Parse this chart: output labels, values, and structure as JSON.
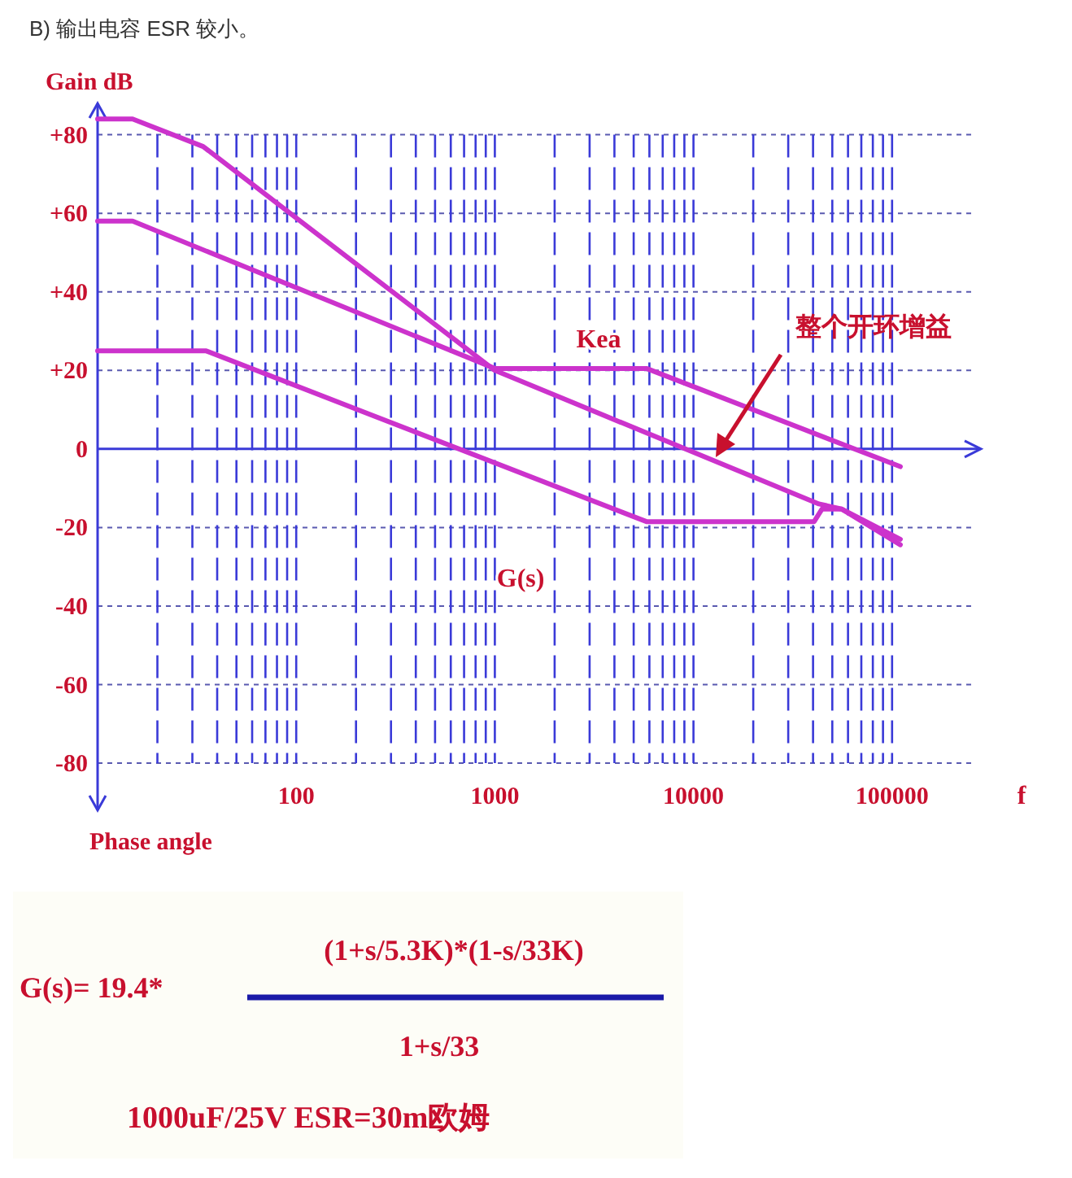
{
  "chart_data": {
    "type": "line",
    "title": "B) 输出电容 ESR 较小。",
    "ylabel": "Gain dB",
    "xlabel": "f",
    "annotations": [
      "Phase angle",
      "G(s)= 19.4*",
      "(1+s/5.3K)*(1-s/33K)",
      "1+s/33",
      "1000uF/25V ESR=30m欧姆",
      "整个开环增益"
    ],
    "log": "x",
    "xlim": [
      10,
      280000
    ],
    "ylim": [
      -92,
      88
    ],
    "xticks": [
      {
        "value": 20,
        "label": null
      },
      {
        "value": 30,
        "label": null
      },
      {
        "value": 40,
        "label": null
      },
      {
        "value": 50,
        "label": null
      },
      {
        "value": 60,
        "label": null
      },
      {
        "value": 70,
        "label": null
      },
      {
        "value": 80,
        "label": null
      },
      {
        "value": 90,
        "label": null
      },
      100,
      {
        "value": 200,
        "label": null
      },
      {
        "value": 300,
        "label": null
      },
      {
        "value": 400,
        "label": null
      },
      {
        "value": 500,
        "label": null
      },
      {
        "value": 600,
        "label": null
      },
      {
        "value": 700,
        "label": null
      },
      {
        "value": 800,
        "label": null
      },
      {
        "value": 900,
        "label": null
      },
      1000,
      {
        "value": 2000,
        "label": null
      },
      {
        "value": 3000,
        "label": null
      },
      {
        "value": 4000,
        "label": null
      },
      {
        "value": 5000,
        "label": null
      },
      {
        "value": 6000,
        "label": null
      },
      {
        "value": 7000,
        "label": null
      },
      {
        "value": 8000,
        "label": null
      },
      {
        "value": 9000,
        "label": null
      },
      10000,
      {
        "value": 20000,
        "label": null
      },
      {
        "value": 30000,
        "label": null
      },
      {
        "value": 40000,
        "label": null
      },
      {
        "value": 50000,
        "label": null
      },
      {
        "value": 60000,
        "label": null
      },
      {
        "value": 70000,
        "label": null
      },
      {
        "value": 80000,
        "label": null
      },
      {
        "value": 90000,
        "label": null
      },
      100000
    ],
    "yticks": [
      {
        "value": 80,
        "label": "+80"
      },
      {
        "value": 60,
        "label": "+60"
      },
      {
        "value": 40,
        "label": "+40"
      },
      {
        "value": 20,
        "label": "+20"
      },
      0,
      -20,
      -40,
      -60,
      -80
    ],
    "ref_lines": [
      {
        "axis": "y",
        "value": 0,
        "color": "#3a3ad8"
      }
    ],
    "grid": true,
    "legend": false,
    "marker": "none",
    "line_style": "solid",
    "series": [
      {
        "color": "#cc33cc",
        "x": [
          10,
          15,
          34,
          1000,
          42800,
          55700,
          110000
        ],
        "values": [
          84,
          84,
          77,
          20,
          -14,
          -15.3,
          -24.4
        ]
      },
      {
        "name": "Kea",
        "color": "#cc33cc",
        "x": [
          10,
          15,
          1000,
          5800,
          110000
        ],
        "values": [
          58,
          58,
          20.5,
          20.5,
          -4.5
        ]
      },
      {
        "name": "G(s)",
        "color": "#cc33cc",
        "x": [
          10,
          35,
          5800,
          40500,
          44400,
          55700,
          110000
        ],
        "values": [
          25,
          25,
          -18.5,
          -18.5,
          -15.3,
          -15.3,
          -23
        ]
      }
    ]
  }
}
